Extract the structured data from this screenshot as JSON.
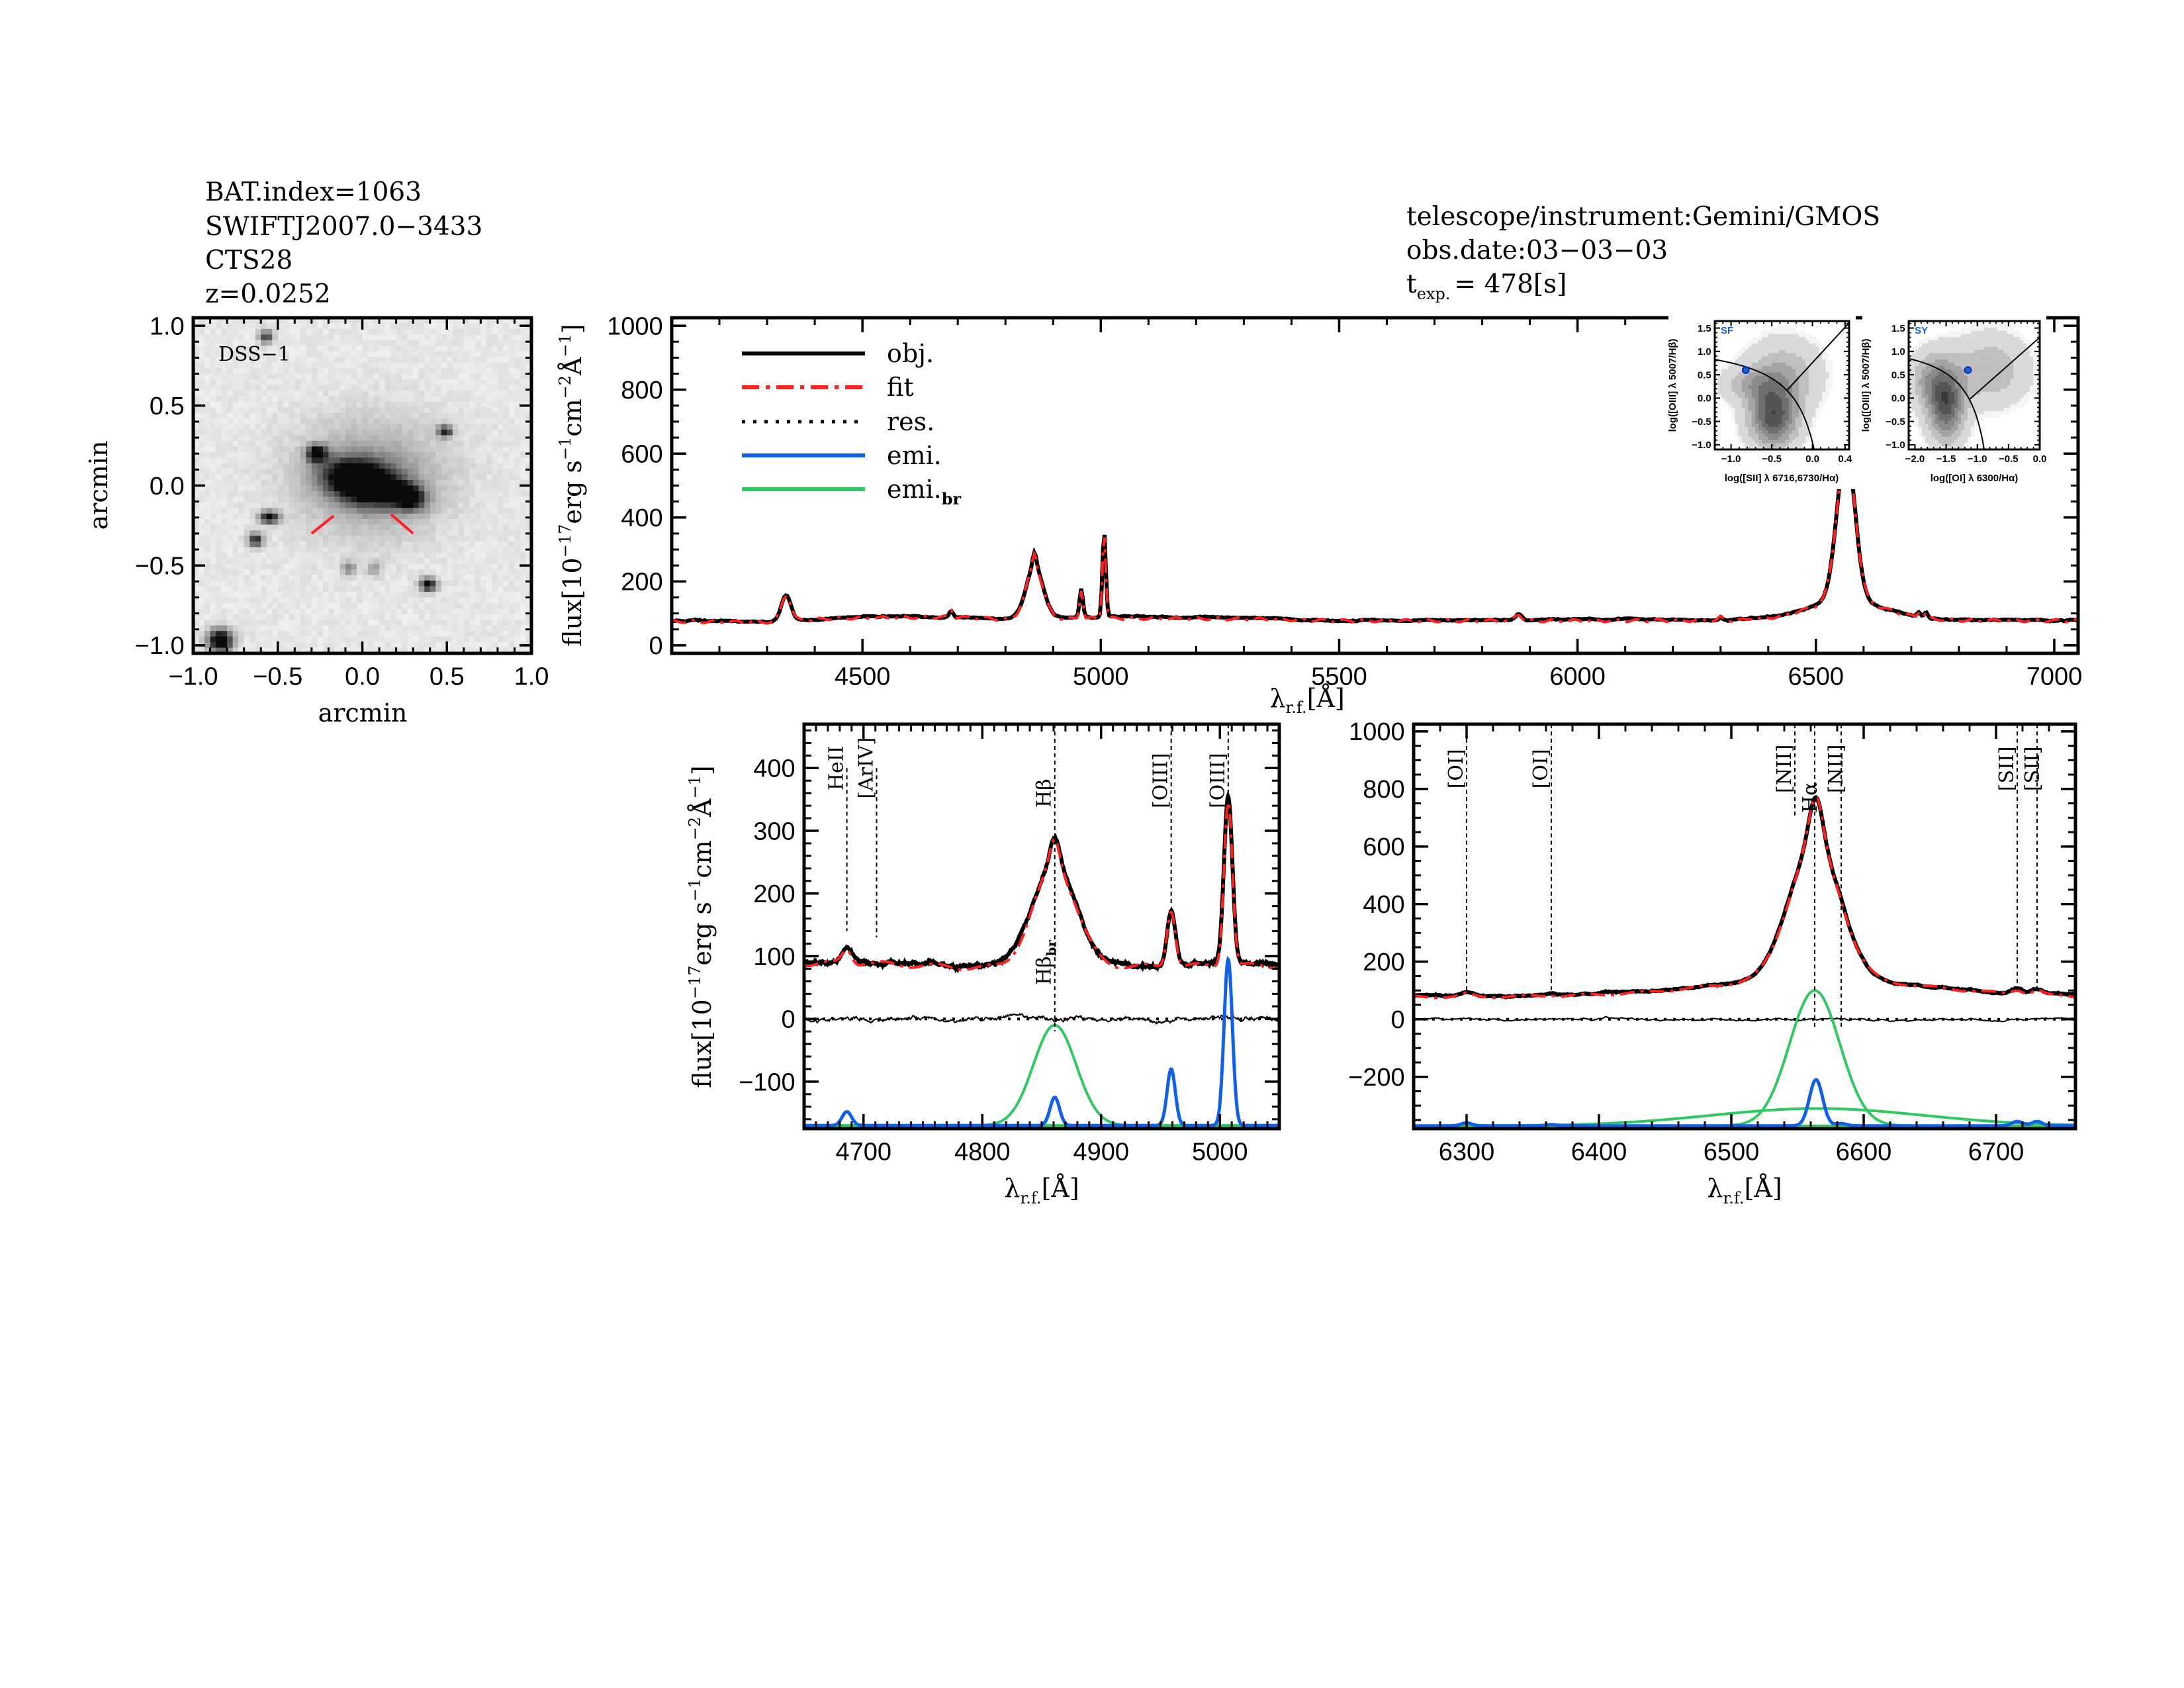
{
  "header_left": {
    "bat_index": "BAT.index=1063",
    "swift_name": "SWIFTJ2007.0−3433",
    "object": "CTS28",
    "redshift": "z=0.0252"
  },
  "header_right": {
    "telescope": "telescope/instrument:Gemini/GMOS",
    "obs_date": "obs.date:03−03−03",
    "texp_t": "t",
    "texp_sub": "exp.",
    "texp_val": "= 478[s]"
  },
  "colors": {
    "obj": "#000000",
    "fit": "#ff2020",
    "res": "#000000",
    "emi": "#1060e8",
    "emi_br": "#30c860"
  },
  "chart_data": [
    {
      "id": "dss_image",
      "type": "heatmap",
      "title": "DSS−1",
      "xlabel": "arcmin",
      "ylabel": "arcmin",
      "xlim": [
        -1.0,
        1.0
      ],
      "ylim": [
        -1.05,
        1.05
      ],
      "xticks": [
        -1.0,
        -0.5,
        0.0,
        0.5,
        1.0
      ],
      "xtick_labels": [
        "−1.0",
        "−0.5",
        "0.0",
        "0.5",
        "1.0"
      ],
      "yticks": [
        -1.0,
        -0.5,
        0.0,
        0.5,
        1.0
      ],
      "ytick_labels": [
        "−1.0",
        "−0.5",
        "0.0",
        "0.5",
        "1.0"
      ],
      "sources": [
        {
          "x": 0.0,
          "y": 0.02,
          "amp": 1.3,
          "sx": 0.15,
          "sy": 0.085,
          "rot": -15
        },
        {
          "x": 0.05,
          "y": 0.05,
          "amp": 0.35,
          "sx": 0.3,
          "sy": 0.24,
          "rot": 0
        },
        {
          "x": 0.27,
          "y": -0.07,
          "amp": 1.0,
          "sx": 0.07,
          "sy": 0.05,
          "rot": -20
        },
        {
          "x": -0.27,
          "y": 0.2,
          "amp": 1.0,
          "sx": 0.04,
          "sy": 0.035,
          "rot": 0
        },
        {
          "x": 0.49,
          "y": 0.34,
          "amp": 0.8,
          "sx": 0.03,
          "sy": 0.025,
          "rot": 0
        },
        {
          "x": -0.55,
          "y": -0.2,
          "amp": 0.9,
          "sx": 0.04,
          "sy": 0.028,
          "rot": 0
        },
        {
          "x": -0.63,
          "y": -0.34,
          "amp": 0.8,
          "sx": 0.03,
          "sy": 0.03,
          "rot": 0
        },
        {
          "x": -0.57,
          "y": 0.93,
          "amp": 0.7,
          "sx": 0.03,
          "sy": 0.03,
          "rot": 0
        },
        {
          "x": -0.84,
          "y": -0.97,
          "amp": 1.2,
          "sx": 0.05,
          "sy": 0.05,
          "rot": 0
        },
        {
          "x": 0.39,
          "y": -0.62,
          "amp": 0.9,
          "sx": 0.035,
          "sy": 0.03,
          "rot": 0
        },
        {
          "x": -0.08,
          "y": -0.52,
          "amp": 0.4,
          "sx": 0.03,
          "sy": 0.03,
          "rot": 0
        },
        {
          "x": 0.07,
          "y": -0.52,
          "amp": 0.3,
          "sx": 0.03,
          "sy": 0.03,
          "rot": 0
        }
      ],
      "slit_markers": [
        [
          [
            -0.3,
            -0.3
          ],
          [
            -0.17,
            -0.19
          ]
        ],
        [
          [
            0.17,
            -0.18
          ],
          [
            0.3,
            -0.3
          ]
        ]
      ]
    },
    {
      "id": "full_spectrum",
      "type": "line",
      "xlabel": "λ",
      "xlabel_sub": "r.f.",
      "xlabel_unit": "[Å]",
      "ylabel": "flux[10",
      "ylabel_exp": "−17",
      "ylabel_rest": "erg s",
      "ylabel_exp2": "−1",
      "ylabel_cm": "cm",
      "ylabel_exp3": "−2",
      "ylabel_A": "Å",
      "ylabel_exp4": "−1",
      "ylabel_end": "]",
      "xlim": [
        4100,
        7050
      ],
      "ylim": [
        -25,
        1025
      ],
      "xticks": [
        4500,
        5000,
        5500,
        6000,
        6500,
        7000
      ],
      "xtick_labels": [
        "4500",
        "5000",
        "5500",
        "6000",
        "6500",
        "7000"
      ],
      "yticks": [
        0,
        200,
        400,
        600,
        800,
        1000
      ],
      "ytick_labels": [
        "0",
        "200",
        "400",
        "600",
        "800",
        "1000"
      ],
      "legend": {
        "placement": "top-left",
        "entries": [
          {
            "key": "obj",
            "label": "obj."
          },
          {
            "key": "fit",
            "label": "fit"
          },
          {
            "key": "res",
            "label": "res."
          },
          {
            "key": "emi",
            "label": "emi."
          },
          {
            "key": "emi_br",
            "label": "emi.",
            "sub": "br"
          }
        ]
      },
      "continuum": [
        [
          4100,
          78
        ],
        [
          4300,
          76
        ],
        [
          4450,
          88
        ],
        [
          4700,
          92
        ],
        [
          4800,
          84
        ],
        [
          5000,
          88
        ],
        [
          5300,
          86
        ],
        [
          5500,
          80
        ],
        [
          6000,
          80
        ],
        [
          6500,
          82
        ],
        [
          7050,
          80
        ]
      ],
      "lines": [
        {
          "name": "Hγ",
          "center": 4340,
          "amp": 80,
          "sigma": 10,
          "kind": "emi"
        },
        {
          "name": "HeII",
          "center": 4686,
          "amp": 22,
          "sigma": 4,
          "kind": "emi"
        },
        {
          "name": "Hβ_br",
          "center": 4861,
          "amp": 160,
          "sigma": 18,
          "kind": "emi_br"
        },
        {
          "name": "Hβ",
          "center": 4861,
          "amp": 45,
          "sigma": 4,
          "kind": "emi"
        },
        {
          "name": "[OIII]4959",
          "center": 4959,
          "amp": 90,
          "sigma": 3.5,
          "kind": "emi"
        },
        {
          "name": "[OIII]5007",
          "center": 5007,
          "amp": 265,
          "sigma": 3.5,
          "kind": "emi"
        },
        {
          "name": "HeI",
          "center": 5876,
          "amp": 20,
          "sigma": 7,
          "kind": "emi"
        },
        {
          "name": "[OI]6300",
          "center": 6300,
          "amp": 10,
          "sigma": 4,
          "kind": "emi"
        },
        {
          "name": "[OI]6364",
          "center": 6364,
          "amp": 4,
          "sigma": 4,
          "kind": "emi"
        },
        {
          "name": "Hα_br",
          "center": 6563,
          "amp": 470,
          "sigma": 19,
          "kind": "emi_br"
        },
        {
          "name": "Hα_vbr",
          "center": 6565,
          "amp": 60,
          "sigma": 80,
          "kind": "emi_br"
        },
        {
          "name": "Hα",
          "center": 6564,
          "amp": 160,
          "sigma": 5,
          "kind": "emi"
        },
        {
          "name": "[NII]6583",
          "center": 6583,
          "amp": 8,
          "sigma": 4,
          "kind": "emi"
        },
        {
          "name": "[SII]6716",
          "center": 6716,
          "amp": 15,
          "sigma": 4,
          "kind": "emi"
        },
        {
          "name": "[SII]6731",
          "center": 6731,
          "amp": 15,
          "sigma": 4,
          "kind": "emi"
        }
      ]
    },
    {
      "id": "hbeta_zoom",
      "type": "line",
      "xlim": [
        4650,
        5050
      ],
      "ylim": [
        -175,
        470
      ],
      "emi_offset": -170,
      "xticks": [
        4700,
        4800,
        4900,
        5000
      ],
      "xtick_labels": [
        "4700",
        "4800",
        "4900",
        "5000"
      ],
      "yticks": [
        -100,
        0,
        100,
        200,
        300,
        400
      ],
      "ytick_labels": [
        "−100",
        "0",
        "100",
        "200",
        "300",
        "400"
      ],
      "markers": [
        {
          "label": "HeII",
          "wave": 4686,
          "color": "#000000",
          "label_y": 400,
          "line_top": 400,
          "line_bottom": 140
        },
        {
          "label": "[ArIV]",
          "wave": 4711,
          "color": "#ff2020",
          "label_y": 400,
          "line_top": 400,
          "line_bottom": 130
        },
        {
          "label": "Hβ",
          "wave": 4861,
          "color": "#000000",
          "label_y": 360,
          "line_top": 470,
          "line_bottom": -20
        },
        {
          "label": "[OIII]",
          "wave": 4959,
          "color": "#000000",
          "label_y": 380,
          "line_top": 470,
          "line_bottom": 180
        },
        {
          "label": "[OIII]",
          "wave": 5007,
          "color": "#000000",
          "label_y": 380,
          "line_top": 470,
          "line_bottom": 360
        }
      ],
      "broad_marker": {
        "label": "Hβ",
        "sub": "br",
        "wave": 4861,
        "label_y": 90
      }
    },
    {
      "id": "halpha_zoom",
      "type": "line",
      "xlim": [
        6260,
        6760
      ],
      "ylim": [
        -380,
        1025
      ],
      "emi_offset": -370,
      "xticks": [
        6300,
        6400,
        6500,
        6600,
        6700
      ],
      "xtick_labels": [
        "6300",
        "6400",
        "6500",
        "6600",
        "6700"
      ],
      "yticks": [
        -200,
        0,
        200,
        400,
        600,
        800,
        1000
      ],
      "ytick_labels": [
        "−200",
        "0",
        "200",
        "400",
        "600",
        "800",
        "1000"
      ],
      "markers": [
        {
          "label": "[OI]",
          "wave": 6300,
          "color": "#000000",
          "label_y": 870,
          "line_top": 1025,
          "line_bottom": 100
        },
        {
          "label": "[OI]",
          "wave": 6364,
          "color": "#000000",
          "label_y": 870,
          "line_top": 1025,
          "line_bottom": 100
        },
        {
          "label": "[NII]",
          "wave": 6548,
          "color": "#ff2020",
          "label_y": 870,
          "line_top": 1025,
          "line_bottom": 700
        },
        {
          "label": "Hα",
          "wave": 6563,
          "color": "#000000",
          "label_y": 770,
          "line_top": 1025,
          "line_bottom": -30
        },
        {
          "label": "[NII]",
          "wave": 6583,
          "color": "#000000",
          "label_y": 870,
          "line_top": 1025,
          "line_bottom": -30
        },
        {
          "label": "[SII]",
          "wave": 6716,
          "color": "#000000",
          "label_y": 870,
          "line_top": 1025,
          "line_bottom": 100
        },
        {
          "label": "[SII]",
          "wave": 6731,
          "color": "#000000",
          "label_y": 870,
          "line_top": 1025,
          "line_bottom": 100
        }
      ]
    },
    {
      "id": "bpt_sii",
      "type": "scatter",
      "tag": "SF",
      "xlabel": "log([SII] λ 6716,6730/Hα)",
      "ylabel": "log([OIII] λ 5007/Hβ)",
      "xlim": [
        -1.2,
        0.45
      ],
      "ylim": [
        -1.1,
        1.65
      ],
      "xticks": [
        -1.0,
        -0.5,
        0.0,
        0.4
      ],
      "xtick_labels": [
        "−1.0",
        "−0.5",
        "0.0",
        "0.4"
      ],
      "yticks": [
        -1.0,
        -0.5,
        0.0,
        0.5,
        1.0,
        1.5
      ],
      "ytick_labels": [
        "−1.0",
        "−0.5",
        "0.0",
        "0.5",
        "1.0",
        "1.5"
      ],
      "point": {
        "x": -0.82,
        "y": 0.6
      },
      "density": [
        {
          "x": -0.48,
          "y": -0.4,
          "sx": 0.2,
          "sy": 0.45,
          "amp": 0.75
        },
        {
          "x": -0.35,
          "y": 0.5,
          "sx": 0.3,
          "sy": 0.5,
          "amp": 0.3
        },
        {
          "x": -0.75,
          "y": 0.3,
          "sx": 0.25,
          "sy": 0.25,
          "amp": 0.25
        }
      ]
    },
    {
      "id": "bpt_oi",
      "type": "scatter",
      "tag": "SY",
      "xlabel": "log([OI] λ 6300/Hα)",
      "ylabel": "log([OIII] λ 5007/Hβ)",
      "xlim": [
        -2.1,
        0.0
      ],
      "ylim": [
        -1.1,
        1.65
      ],
      "xticks": [
        -2.0,
        -1.5,
        -1.0,
        -0.5,
        0.0
      ],
      "xtick_labels": [
        "−2.0",
        "−1.5",
        "−1.0",
        "−0.5",
        "0.0"
      ],
      "yticks": [
        -1.0,
        -0.5,
        0.0,
        0.5,
        1.0,
        1.5
      ],
      "ytick_labels": [
        "−1.0",
        "−0.5",
        "0.0",
        "0.5",
        "1.0",
        "1.5"
      ],
      "point": {
        "x": -1.15,
        "y": 0.6
      },
      "density": [
        {
          "x": -1.5,
          "y": -0.1,
          "sx": 0.2,
          "sy": 0.55,
          "amp": 0.75
        },
        {
          "x": -0.8,
          "y": 0.6,
          "sx": 0.4,
          "sy": 0.5,
          "amp": 0.3
        },
        {
          "x": -1.8,
          "y": 0.4,
          "sx": 0.2,
          "sy": 0.4,
          "amp": 0.3
        }
      ]
    }
  ]
}
